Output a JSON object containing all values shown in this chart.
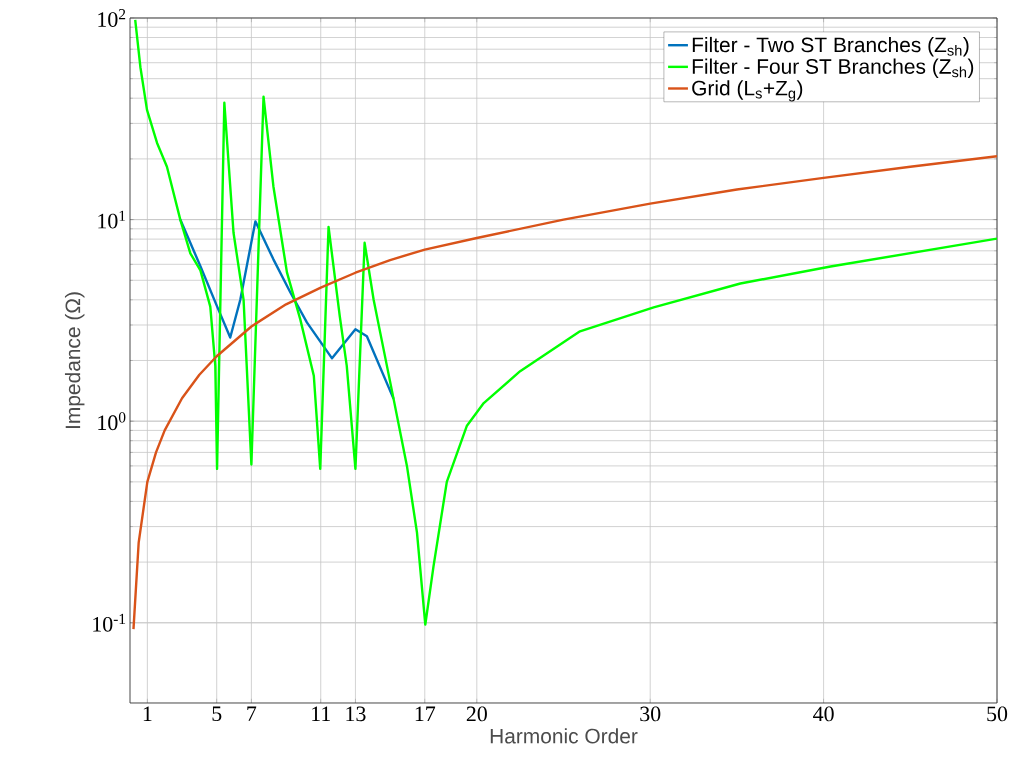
{
  "chart_data": {
    "type": "line",
    "xlabel": "Harmonic Order",
    "ylabel": "Impedance (Ω)",
    "log": "y",
    "grid": true,
    "legend": "top right",
    "xlim": [
      0,
      50
    ],
    "ylim": [
      0.04,
      100
    ],
    "xticks": [
      1,
      5,
      7,
      11,
      13,
      17,
      20,
      30,
      40,
      50
    ],
    "yticks": [
      {
        "value": 0.1,
        "label": "10$^{-1}$"
      },
      {
        "value": 1,
        "label": "10$^{0}$"
      },
      {
        "value": 10,
        "label": "10$^{1}$"
      },
      {
        "value": 100,
        "label": "10$^{2}$"
      }
    ],
    "series": [
      {
        "name": "Filter - Two ST Branches (Z$_{sh}$)",
        "color": "#0072bd",
        "x": [
          2.9,
          4.06,
          5.02,
          5.78,
          6.36,
          7.23,
          8.27,
          9.25,
          10.2,
          11.65,
          13.0,
          13.66,
          15.2
        ],
        "values": [
          10,
          5.87,
          3.71,
          2.6,
          4.0,
          9.8,
          6.35,
          4.35,
          3.09,
          2.05,
          2.86,
          2.64,
          1.29
        ]
      },
      {
        "name": "Filter - Four ST Branches (Z$_{sh}$)",
        "color": "#00ff00",
        "x": [
          0.3,
          0.6,
          0.98,
          1.56,
          2.13,
          2.9,
          3.48,
          4.06,
          4.63,
          4.92,
          5.02,
          5.44,
          5.97,
          6.55,
          7.0,
          7.7,
          8.27,
          9.05,
          9.82,
          10.6,
          10.97,
          11.45,
          12.1,
          12.5,
          13.0,
          13.53,
          14.05,
          14.43,
          15.2,
          15.97,
          16.55,
          17.03,
          17.5,
          18.27,
          19.43,
          20.4,
          22.5,
          25.95,
          30.2,
          35.2,
          40.4,
          50
        ],
        "values": [
          98,
          57,
          35,
          24,
          18.3,
          10,
          6.8,
          5.6,
          3.7,
          1.88,
          0.58,
          38,
          8.6,
          4.0,
          0.61,
          40.7,
          14.6,
          5.47,
          3.2,
          1.68,
          0.58,
          9.2,
          3.3,
          1.88,
          0.58,
          7.67,
          4.0,
          2.75,
          1.29,
          0.6,
          0.28,
          0.098,
          0.19,
          0.5,
          0.95,
          1.23,
          1.77,
          2.79,
          3.67,
          4.82,
          5.85,
          8.05
        ]
      },
      {
        "name": "Grid (L$_{s}$+Z$_{g}$)",
        "color": "#d95319",
        "x": [
          0.2,
          0.5,
          1,
          1.5,
          2,
          3,
          4,
          5,
          7,
          9,
          11,
          13,
          15,
          17,
          20,
          25,
          30,
          35,
          40,
          45,
          50
        ],
        "values": [
          0.093,
          0.25,
          0.5,
          0.7,
          0.9,
          1.3,
          1.7,
          2.1,
          2.95,
          3.8,
          4.6,
          5.45,
          6.3,
          7.1,
          8.1,
          10,
          12,
          14.1,
          16.1,
          18.3,
          20.6
        ]
      }
    ]
  }
}
